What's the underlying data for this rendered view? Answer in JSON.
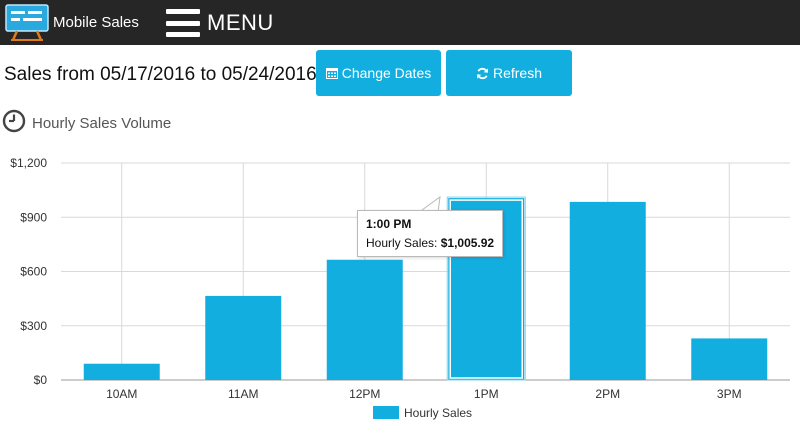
{
  "app": {
    "title": "Mobile Sales",
    "menu_label": "MENU"
  },
  "header": {
    "range_label": "Sales from 05/17/2016 to 05/24/2016",
    "change_dates_label": "Change Dates",
    "refresh_label": "Refresh"
  },
  "section": {
    "title": "Hourly Sales Volume"
  },
  "tooltip": {
    "title": "1:00 PM",
    "series_label": "Hourly Sales:",
    "value_label": "$1,005.92"
  },
  "colors": {
    "bar": "#13aee0",
    "topbar": "#262626",
    "grid": "#d9d9d9"
  },
  "chart_data": {
    "type": "bar",
    "categories": [
      "10AM",
      "11AM",
      "12PM",
      "1PM",
      "2PM",
      "3PM"
    ],
    "series": [
      {
        "name": "Hourly Sales",
        "values": [
          90,
          465,
          665,
          1005.92,
          985,
          230
        ]
      }
    ],
    "yticks": [
      "$0",
      "$300",
      "$600",
      "$900",
      "$1,200"
    ],
    "ylim": [
      0,
      1200
    ],
    "grid": true,
    "legend": "bottom",
    "highlighted_category": "1PM"
  }
}
